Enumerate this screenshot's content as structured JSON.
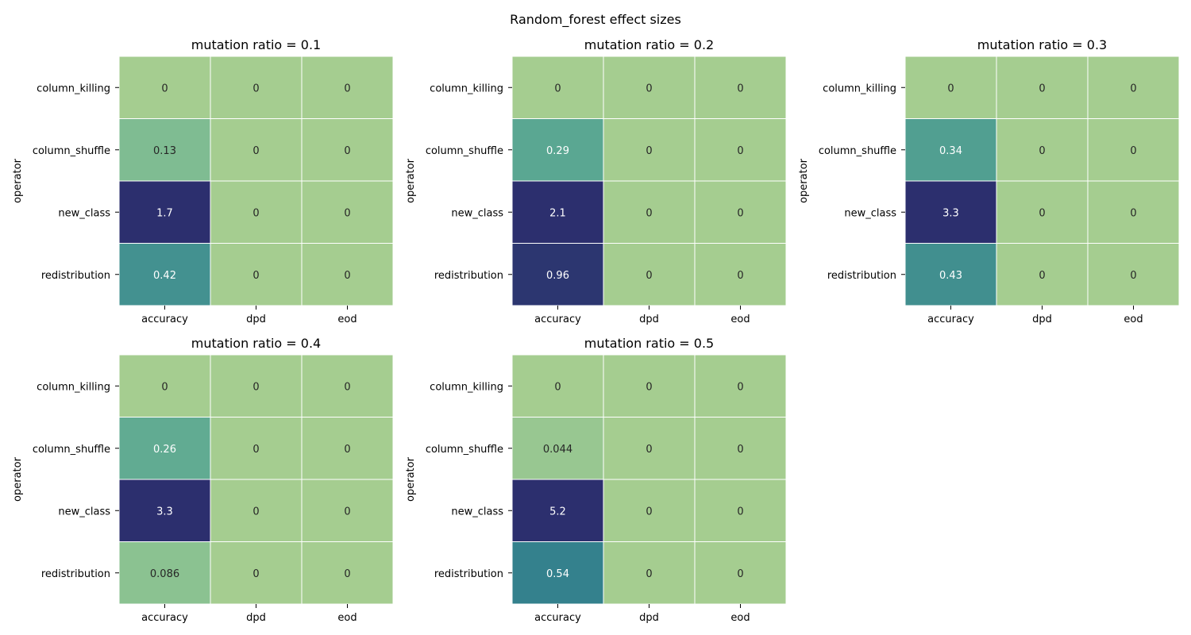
{
  "figure": {
    "title": "Random_forest effect sizes"
  },
  "chart_data": {
    "type": "heatmap",
    "title": "Random_forest effect sizes",
    "ylabel": "operator",
    "rows": [
      "column_killing",
      "column_shuffle",
      "new_class",
      "redistribution"
    ],
    "columns": [
      "accuracy",
      "dpd",
      "eod"
    ],
    "colormap": "crest",
    "color_scale": {
      "min_color": "#a5cd90",
      "max_color": "#2c2f6e",
      "vmin": 0,
      "vmax": 1
    },
    "panels": [
      {
        "title": "mutation ratio = 0.1",
        "values": [
          [
            0,
            0,
            0
          ],
          [
            0.13,
            0,
            0
          ],
          [
            1.7,
            0,
            0
          ],
          [
            0.42,
            0,
            0
          ]
        ]
      },
      {
        "title": "mutation ratio = 0.2",
        "values": [
          [
            0,
            0,
            0
          ],
          [
            0.29,
            0,
            0
          ],
          [
            2.1,
            0,
            0
          ],
          [
            0.96,
            0,
            0
          ]
        ]
      },
      {
        "title": "mutation ratio = 0.3",
        "values": [
          [
            0,
            0,
            0
          ],
          [
            0.34,
            0,
            0
          ],
          [
            3.3,
            0,
            0
          ],
          [
            0.43,
            0,
            0
          ]
        ]
      },
      {
        "title": "mutation ratio = 0.4",
        "values": [
          [
            0,
            0,
            0
          ],
          [
            0.26,
            0,
            0
          ],
          [
            3.3,
            0,
            0
          ],
          [
            0.086,
            0,
            0
          ]
        ]
      },
      {
        "title": "mutation ratio = 0.5",
        "values": [
          [
            0,
            0,
            0
          ],
          [
            0.044,
            0,
            0
          ],
          [
            5.2,
            0,
            0
          ],
          [
            0.54,
            0,
            0
          ]
        ]
      }
    ]
  }
}
